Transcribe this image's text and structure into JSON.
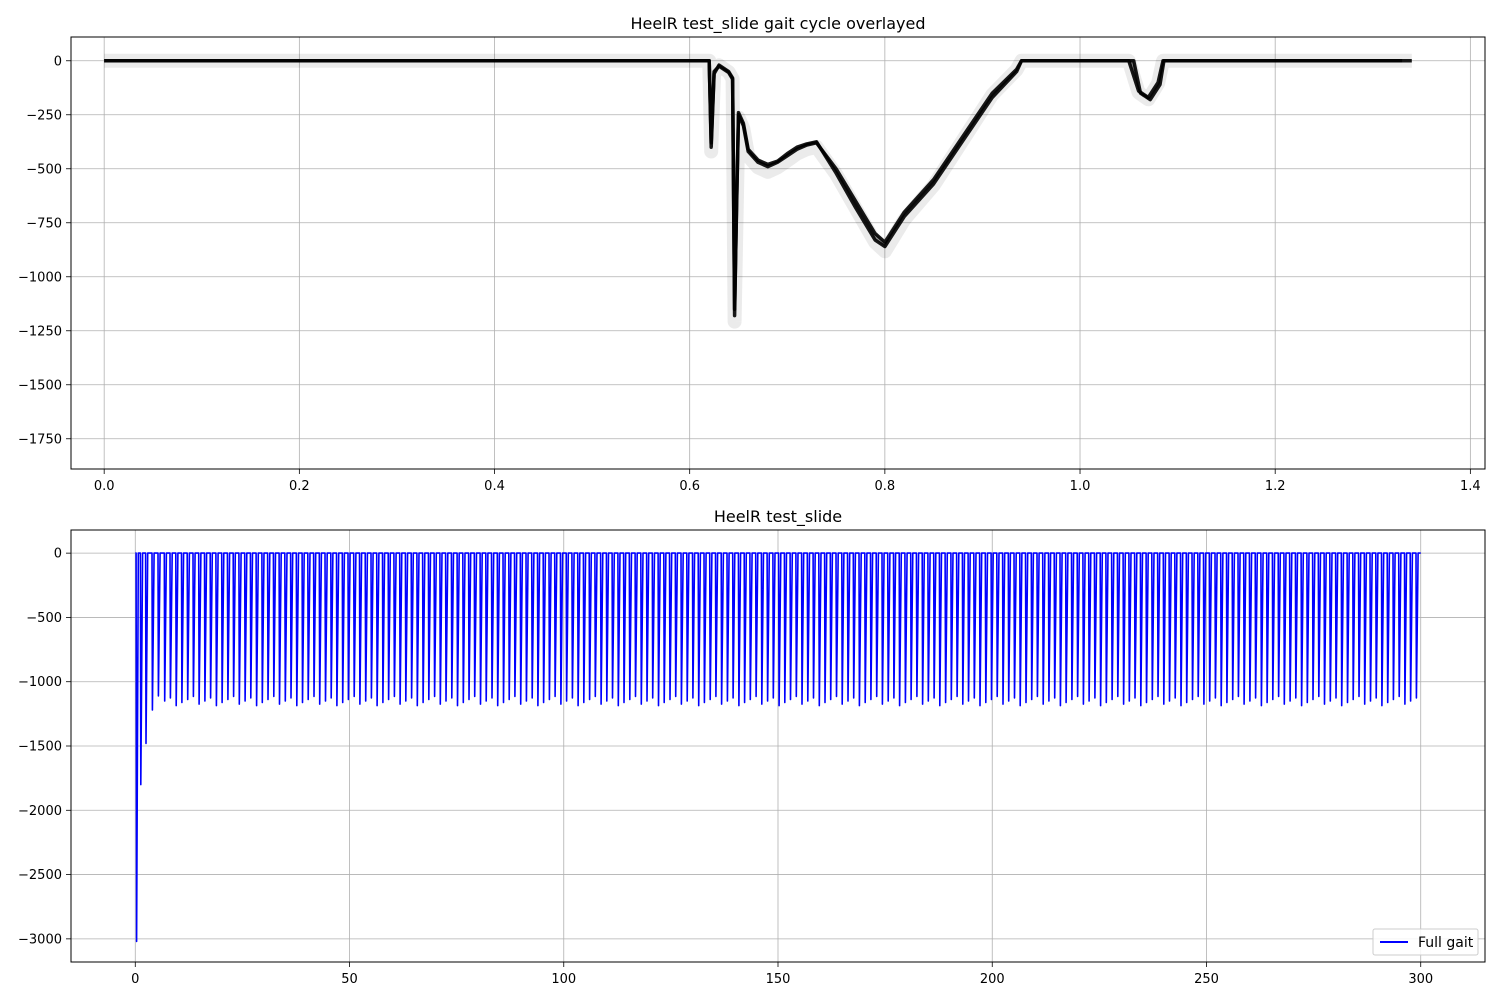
{
  "chart_data": [
    {
      "type": "line",
      "title": "HeelR test_slide gait cycle overlayed",
      "xlabel": "",
      "ylabel": "",
      "xlim": [
        -0.034,
        1.415
      ],
      "ylim": [
        -1890,
        110
      ],
      "x_ticks": [
        0.0,
        0.2,
        0.4,
        0.6,
        0.8,
        1.0,
        1.2,
        1.4
      ],
      "x_tick_labels": [
        "0.0",
        "0.2",
        "0.4",
        "0.6",
        "0.8",
        "1.0",
        "1.2",
        "1.4"
      ],
      "y_ticks": [
        0,
        -250,
        -500,
        -750,
        -1000,
        -1250,
        -1500,
        -1750
      ],
      "y_tick_labels": [
        "0",
        "−250",
        "−500",
        "−750",
        "−1000",
        "−1250",
        "−1500",
        "−1750"
      ],
      "grid": true,
      "line_color": "#000000",
      "series": [
        {
          "x": [
            0.0,
            0.62,
            0.622,
            0.625,
            0.63,
            0.64,
            0.644,
            0.646,
            0.648,
            0.65,
            0.655,
            0.66,
            0.67,
            0.68,
            0.69,
            0.7,
            0.71,
            0.72,
            0.73,
            0.75,
            0.77,
            0.79,
            0.8,
            0.82,
            0.85,
            0.88,
            0.91,
            0.935,
            0.94,
            1.05,
            1.06,
            1.07,
            1.08,
            1.085,
            1.34
          ],
          "y": [
            0,
            0,
            -400,
            -60,
            -20,
            -50,
            -80,
            -1150,
            -700,
            -250,
            -300,
            -420,
            -470,
            -490,
            -470,
            -440,
            -410,
            -390,
            -380,
            -500,
            -650,
            -800,
            -840,
            -700,
            -550,
            -350,
            -150,
            -40,
            0,
            0,
            -140,
            -170,
            -100,
            0,
            0
          ]
        },
        {
          "x": [
            0.0,
            0.62,
            0.622,
            0.625,
            0.63,
            0.64,
            0.644,
            0.646,
            0.648,
            0.65,
            0.655,
            0.66,
            0.67,
            0.68,
            0.69,
            0.7,
            0.71,
            0.72,
            0.73,
            0.75,
            0.77,
            0.79,
            0.8,
            0.82,
            0.85,
            0.88,
            0.91,
            0.935,
            0.94,
            1.055,
            1.062,
            1.072,
            1.082,
            1.086,
            1.33
          ],
          "y": [
            0,
            0,
            -380,
            -50,
            -25,
            -55,
            -85,
            -1180,
            -680,
            -240,
            -290,
            -410,
            -460,
            -480,
            -465,
            -430,
            -400,
            -385,
            -375,
            -520,
            -680,
            -830,
            -860,
            -720,
            -570,
            -370,
            -170,
            -50,
            0,
            0,
            -150,
            -180,
            -110,
            0,
            0
          ]
        }
      ]
    },
    {
      "type": "line",
      "title": "HeelR test_slide",
      "xlabel": "",
      "ylabel": "",
      "xlim": [
        -15,
        315
      ],
      "ylim": [
        -3180,
        180
      ],
      "x_ticks": [
        0,
        50,
        100,
        150,
        200,
        250,
        300
      ],
      "x_tick_labels": [
        "0",
        "50",
        "100",
        "150",
        "200",
        "250",
        "300"
      ],
      "y_ticks": [
        0,
        -500,
        -1000,
        -1500,
        -2000,
        -2500,
        -3000
      ],
      "y_tick_labels": [
        "0",
        "−500",
        "−1000",
        "−1500",
        "−2000",
        "−2500",
        "−3000"
      ],
      "grid": true,
      "legend_placement": "lower-right",
      "series": [
        {
          "name": "Full gait",
          "color": "#0000ff",
          "x_start": 0,
          "x_end": 300,
          "step_period": 1.34,
          "baseline": 0,
          "typical_min": -1150,
          "initial_spikes": [
            {
              "x": 0.2,
              "y": -3020
            },
            {
              "x": 1.2,
              "y": -1800
            },
            {
              "x": 2.4,
              "y": -1480
            },
            {
              "x": 3.9,
              "y": -1220
            },
            {
              "x": 5.3,
              "y": -1110
            }
          ]
        }
      ]
    }
  ]
}
